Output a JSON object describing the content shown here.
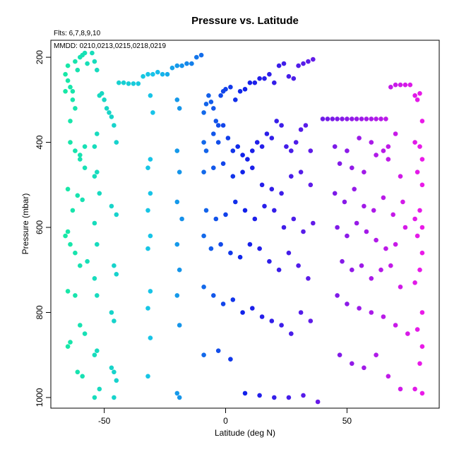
{
  "chart_data": {
    "type": "scatter",
    "title": "Pressure vs. Latitude",
    "xlabel": "Latitude (deg N)",
    "ylabel": "Pressure (mbar)",
    "xlim": [
      -72,
      88
    ],
    "ylim": [
      1025,
      160
    ],
    "y_reversed": true,
    "x_ticks": [
      -50,
      0,
      50
    ],
    "y_ticks": [
      200,
      400,
      600,
      800,
      1000
    ],
    "grid": false,
    "annotations": [
      "Flts: 6,7,8,9,10",
      "MMDD: 0210,0213,0215,0218,0219"
    ],
    "color_scale": {
      "by": "latitude",
      "range": [
        -66,
        81
      ],
      "colors": [
        "#17e8a6",
        "#17c2ea",
        "#1020ea",
        "#7a1ae8",
        "#ea1ae8"
      ]
    },
    "series": [
      {
        "x": [
          -66,
          -65,
          -65,
          -64,
          -63,
          -62,
          -61,
          -60,
          -59,
          -58,
          -57,
          -63,
          -62,
          -64,
          -66,
          -58,
          -60,
          -64,
          -62,
          -60,
          -58,
          -65,
          -61,
          -59,
          -63,
          -66,
          -64,
          -65,
          -62,
          -60,
          -57,
          -65,
          -62,
          -60,
          -58,
          -64,
          -65,
          -61,
          -59
        ],
        "y": [
          240,
          220,
          255,
          270,
          280,
          210,
          230,
          200,
          195,
          190,
          215,
          300,
          320,
          350,
          280,
          410,
          430,
          400,
          420,
          440,
          460,
          510,
          525,
          535,
          560,
          620,
          640,
          610,
          660,
          690,
          680,
          750,
          760,
          830,
          850,
          870,
          880,
          940,
          950
        ]
      },
      {
        "x": [
          -55,
          -54,
          -53,
          -52,
          -51,
          -50,
          -49,
          -48,
          -47,
          -53,
          -54,
          -46,
          -45,
          -53,
          -54,
          -52,
          -47,
          -45,
          -54,
          -53,
          -46,
          -45,
          -54,
          -53,
          -47,
          -46,
          -53,
          -54,
          -46,
          -45,
          -52,
          -54,
          -47,
          -46
        ],
        "y": [
          190,
          210,
          230,
          290,
          285,
          300,
          320,
          330,
          340,
          380,
          410,
          360,
          400,
          470,
          480,
          520,
          550,
          570,
          590,
          640,
          690,
          710,
          720,
          760,
          800,
          820,
          890,
          900,
          940,
          960,
          980,
          1000,
          930,
          1000
        ]
      },
      {
        "x": [
          -44,
          -42,
          -40,
          -38,
          -36,
          -34,
          -32,
          -30,
          -28,
          -26,
          -24,
          -22,
          -20,
          -18,
          -16,
          -14,
          -12,
          -10,
          -31,
          -30,
          -20,
          -19,
          -31,
          -32,
          -20,
          -19,
          -31,
          -32,
          -20,
          -18,
          -31,
          -32,
          -20,
          -19,
          -31,
          -32,
          -20,
          -19,
          -31,
          -32,
          -20,
          -19
        ],
        "y": [
          260,
          260,
          262,
          262,
          262,
          245,
          240,
          240,
          235,
          240,
          240,
          225,
          220,
          220,
          215,
          215,
          200,
          195,
          290,
          330,
          300,
          320,
          440,
          460,
          420,
          470,
          520,
          560,
          540,
          580,
          620,
          650,
          640,
          700,
          750,
          790,
          760,
          830,
          860,
          950,
          990,
          1000
        ]
      },
      {
        "x": [
          -9,
          -8,
          -7,
          -6,
          -5,
          -4,
          -3,
          -2,
          -1,
          0,
          2,
          4,
          6,
          8,
          10,
          12,
          14,
          16,
          18,
          20,
          22,
          24,
          26,
          28,
          30,
          32,
          34,
          36,
          -9,
          -8,
          -5,
          -3,
          -1,
          1,
          3,
          5,
          7,
          9,
          11,
          13,
          15,
          17,
          19,
          21,
          23,
          25,
          27,
          29,
          31,
          33,
          35,
          -9,
          -5,
          -1,
          3,
          7,
          11,
          15,
          19,
          23,
          27,
          31,
          35,
          -8,
          -4,
          0,
          4,
          8,
          12,
          16,
          20,
          24,
          28,
          32,
          36,
          -9,
          -6,
          -2,
          2,
          6,
          10,
          14,
          18,
          22,
          26,
          30,
          34,
          -9,
          -5,
          -1,
          3,
          7,
          11,
          15,
          19,
          23,
          27,
          31,
          35,
          -9,
          -3,
          2,
          8,
          14,
          20,
          26,
          32,
          38
        ],
        "y": [
          330,
          310,
          290,
          305,
          320,
          350,
          360,
          290,
          280,
          275,
          270,
          300,
          280,
          275,
          260,
          260,
          250,
          250,
          240,
          260,
          220,
          215,
          245,
          250,
          220,
          215,
          210,
          205,
          400,
          420,
          380,
          400,
          360,
          390,
          420,
          410,
          430,
          440,
          420,
          400,
          410,
          380,
          390,
          350,
          360,
          410,
          420,
          400,
          370,
          360,
          420,
          470,
          460,
          450,
          480,
          470,
          460,
          500,
          510,
          520,
          480,
          470,
          500,
          560,
          580,
          570,
          540,
          560,
          580,
          550,
          560,
          600,
          580,
          610,
          590,
          620,
          650,
          640,
          660,
          670,
          640,
          650,
          680,
          700,
          660,
          690,
          720,
          740,
          760,
          780,
          770,
          800,
          790,
          810,
          820,
          830,
          850,
          800,
          820,
          900,
          890,
          910,
          990,
          995,
          1000,
          1000,
          995,
          1010
        ]
      },
      {
        "x": [
          40,
          42,
          44,
          46,
          48,
          50,
          52,
          54,
          56,
          58,
          60,
          62,
          64,
          66,
          67,
          68,
          70,
          72,
          74,
          76,
          45,
          50,
          55,
          60,
          65,
          70,
          47,
          52,
          57,
          62,
          67,
          72,
          45,
          49,
          53,
          57,
          61,
          65,
          69,
          73,
          46,
          50,
          54,
          58,
          62,
          66,
          70,
          74,
          48,
          52,
          56,
          60,
          64,
          68,
          72,
          46,
          50,
          55,
          60,
          65,
          70,
          75,
          47,
          52,
          57,
          62,
          67,
          72
        ],
        "y": [
          345,
          345,
          345,
          345,
          345,
          345,
          345,
          345,
          345,
          345,
          345,
          345,
          345,
          345,
          410,
          270,
          265,
          265,
          265,
          265,
          410,
          420,
          390,
          400,
          420,
          380,
          450,
          460,
          470,
          430,
          440,
          480,
          520,
          540,
          510,
          550,
          560,
          530,
          570,
          540,
          600,
          620,
          590,
          610,
          630,
          650,
          640,
          600,
          680,
          700,
          690,
          720,
          700,
          690,
          740,
          760,
          780,
          790,
          800,
          810,
          830,
          850,
          900,
          920,
          930,
          900,
          950,
          980
        ]
      },
      {
        "x": [
          78,
          79,
          80,
          81,
          78,
          80,
          81,
          79,
          81,
          80,
          78,
          81,
          79,
          81,
          80,
          78,
          81,
          79,
          81,
          80,
          78,
          81
        ],
        "y": [
          290,
          300,
          285,
          350,
          400,
          410,
          440,
          470,
          500,
          560,
          580,
          600,
          620,
          660,
          700,
          730,
          800,
          840,
          880,
          920,
          980,
          990
        ]
      }
    ]
  }
}
